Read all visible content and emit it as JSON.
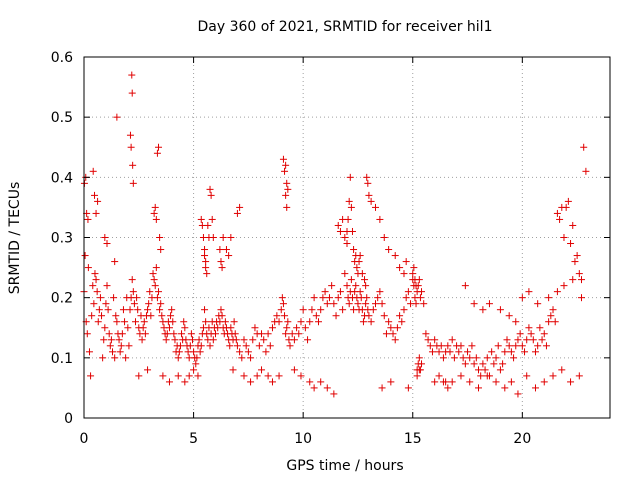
{
  "chart_data": {
    "type": "scatter",
    "title": "Day 360 of 2021, SRMTID for receiver hil1",
    "xlabel": "GPS time / hours",
    "ylabel": "SRMTID / TECUs",
    "xlim": [
      0,
      24
    ],
    "ylim": [
      0,
      0.6
    ],
    "xticks": [
      0,
      5,
      10,
      15,
      20
    ],
    "xtick_labels": [
      "0",
      "5",
      "10",
      "15",
      "20"
    ],
    "yticks": [
      0,
      0.1,
      0.2,
      0.3,
      0.4,
      0.5,
      0.6
    ],
    "ytick_labels": [
      "0",
      "0.1",
      "0.2",
      "0.3",
      "0.4",
      "0.5",
      "0.6"
    ],
    "grid": true,
    "marker": "+",
    "series": [
      {
        "name": "SRMTID",
        "color": "#e00000",
        "x": [
          0.0,
          0.05,
          0.1,
          0.15,
          0.2,
          0.25,
          0.3,
          0.35,
          0.4,
          0.45,
          0.5,
          0.55,
          0.6,
          0.65,
          0.7,
          0.75,
          0.8,
          0.85,
          0.9,
          0.95,
          1.0,
          1.05,
          1.1,
          1.15,
          1.2,
          1.25,
          1.3,
          1.35,
          1.4,
          1.45,
          1.5,
          1.55,
          1.6,
          1.65,
          1.7,
          1.75,
          1.8,
          1.85,
          1.9,
          1.95,
          2.0,
          2.05,
          2.1,
          2.15,
          2.2,
          2.25,
          2.3,
          2.35,
          2.4,
          2.45,
          2.5,
          2.55,
          2.6,
          2.65,
          2.7,
          2.75,
          2.8,
          2.85,
          2.9,
          2.95,
          3.0,
          3.05,
          3.1,
          3.15,
          3.2,
          3.25,
          3.3,
          3.35,
          3.4,
          3.45,
          3.5,
          3.55,
          3.6,
          3.65,
          3.7,
          3.75,
          3.8,
          3.85,
          3.9,
          3.95,
          4.0,
          4.05,
          4.1,
          4.15,
          4.2,
          4.25,
          4.3,
          4.35,
          4.4,
          4.45,
          4.5,
          4.55,
          4.6,
          4.65,
          4.7,
          4.75,
          4.8,
          4.85,
          4.9,
          4.95,
          5.0,
          5.05,
          5.1,
          5.15,
          5.2,
          5.25,
          5.3,
          5.35,
          5.4,
          5.45,
          5.5,
          5.55,
          5.6,
          5.65,
          5.7,
          5.75,
          5.8,
          5.85,
          5.9,
          5.95,
          6.0,
          6.05,
          6.1,
          6.15,
          6.2,
          6.25,
          6.3,
          6.35,
          6.4,
          6.45,
          6.5,
          6.55,
          6.6,
          6.65,
          6.7,
          6.75,
          6.8,
          6.85,
          6.9,
          6.95,
          7.0,
          7.1,
          7.2,
          7.3,
          7.4,
          7.5,
          7.6,
          7.7,
          7.8,
          7.9,
          8.0,
          8.1,
          8.2,
          8.3,
          8.4,
          8.5,
          8.6,
          8.7,
          8.8,
          8.9,
          9.0,
          9.05,
          9.1,
          9.15,
          9.2,
          9.25,
          9.3,
          9.35,
          9.4,
          9.5,
          9.6,
          9.7,
          9.8,
          9.9,
          10.0,
          10.1,
          10.2,
          10.3,
          10.4,
          10.5,
          10.6,
          10.7,
          10.8,
          10.9,
          11.0,
          11.1,
          11.2,
          11.3,
          11.4,
          11.5,
          11.6,
          11.7,
          11.8,
          11.9,
          12.0,
          12.05,
          12.1,
          12.15,
          12.2,
          12.25,
          12.3,
          12.35,
          12.4,
          12.45,
          12.5,
          12.55,
          12.6,
          12.65,
          12.7,
          12.75,
          12.8,
          12.85,
          12.9,
          12.95,
          13.0,
          13.1,
          13.2,
          13.3,
          13.4,
          13.5,
          13.6,
          13.7,
          13.8,
          13.9,
          14.0,
          14.1,
          14.2,
          14.3,
          14.4,
          14.5,
          14.6,
          14.7,
          14.8,
          14.9,
          15.0,
          15.05,
          15.1,
          15.15,
          15.2,
          15.25,
          15.3,
          15.35,
          15.4,
          15.5,
          15.6,
          15.7,
          15.8,
          15.9,
          16.0,
          16.1,
          16.2,
          16.3,
          16.4,
          16.5,
          16.6,
          16.7,
          16.8,
          16.9,
          17.0,
          17.1,
          17.2,
          17.3,
          17.4,
          17.5,
          17.6,
          17.7,
          17.8,
          17.9,
          18.0,
          18.1,
          18.2,
          18.3,
          18.4,
          18.5,
          18.6,
          18.7,
          18.8,
          18.9,
          19.0,
          19.1,
          19.2,
          19.3,
          19.4,
          19.5,
          19.6,
          19.7,
          19.8,
          19.9,
          20.0,
          20.1,
          20.2,
          20.3,
          20.4,
          20.5,
          20.6,
          20.7,
          20.8,
          20.9,
          21.0,
          21.1,
          21.2,
          21.3,
          21.4,
          21.5,
          21.6,
          21.7,
          21.8,
          21.9,
          22.0,
          22.1,
          22.2,
          22.3,
          22.4,
          22.5,
          22.6,
          22.7,
          22.8,
          22.9,
          0.02,
          0.08,
          0.12,
          0.18,
          0.42,
          0.48,
          0.55,
          0.62,
          0.95,
          1.05,
          1.4,
          1.5,
          2.12,
          2.15,
          2.18,
          2.2,
          2.22,
          2.25,
          3.2,
          3.25,
          3.3,
          3.35,
          3.4,
          3.45,
          3.5,
          5.35,
          5.4,
          5.45,
          5.5,
          5.5,
          5.55,
          5.55,
          5.6,
          5.65,
          5.7,
          5.75,
          5.8,
          5.85,
          5.9,
          6.2,
          6.25,
          6.3,
          6.35,
          6.5,
          6.6,
          6.7,
          7.0,
          7.1,
          9.1,
          9.15,
          9.2,
          9.25,
          9.3,
          9.2,
          9.25,
          11.6,
          11.7,
          11.8,
          11.9,
          12.0,
          12.0,
          12.05,
          12.1,
          12.15,
          12.2,
          12.25,
          12.3,
          12.35,
          12.4,
          12.45,
          12.5,
          12.55,
          12.6,
          12.7,
          12.8,
          12.85,
          12.9,
          12.95,
          13.0,
          13.1,
          13.3,
          13.5,
          13.7,
          13.9,
          14.2,
          14.4,
          14.6,
          14.7,
          15.0,
          15.05,
          15.1,
          15.15,
          15.2,
          15.25,
          15.3,
          15.35,
          15.4,
          15.3,
          15.2,
          16.0,
          16.2,
          16.4,
          16.5,
          16.6,
          2.5,
          2.9,
          3.6,
          3.9,
          4.3,
          4.6,
          4.8,
          5.0,
          5.2,
          6.8,
          7.3,
          7.6,
          7.9,
          8.1,
          8.4,
          8.6,
          8.9,
          9.6,
          9.9,
          10.3,
          10.5,
          10.8,
          11.1,
          11.4,
          13.6,
          14.0,
          14.8,
          16.8,
          17.2,
          17.6,
          18.0,
          18.4,
          18.8,
          19.2,
          19.5,
          19.8,
          20.2,
          20.6,
          21.0,
          21.4,
          21.8,
          22.2,
          22.6,
          18.5,
          19.0,
          19.4,
          19.7,
          20.0,
          20.3,
          20.7,
          21.2,
          21.6,
          21.9,
          22.3,
          22.7,
          17.4,
          17.8,
          18.2
        ],
        "y": [
          0.21,
          0.27,
          0.16,
          0.14,
          0.25,
          0.11,
          0.07,
          0.17,
          0.22,
          0.19,
          0.24,
          0.23,
          0.21,
          0.16,
          0.18,
          0.2,
          0.17,
          0.1,
          0.13,
          0.15,
          0.19,
          0.22,
          0.18,
          0.14,
          0.12,
          0.13,
          0.11,
          0.2,
          0.1,
          0.17,
          0.16,
          0.14,
          0.13,
          0.11,
          0.12,
          0.14,
          0.18,
          0.16,
          0.1,
          0.2,
          0.15,
          0.12,
          0.18,
          0.2,
          0.23,
          0.21,
          0.19,
          0.16,
          0.2,
          0.18,
          0.15,
          0.14,
          0.17,
          0.13,
          0.15,
          0.16,
          0.14,
          0.17,
          0.18,
          0.19,
          0.21,
          0.17,
          0.2,
          0.24,
          0.23,
          0.22,
          0.25,
          0.2,
          0.21,
          0.18,
          0.19,
          0.17,
          0.16,
          0.15,
          0.14,
          0.13,
          0.14,
          0.16,
          0.15,
          0.17,
          0.18,
          0.16,
          0.14,
          0.13,
          0.11,
          0.12,
          0.1,
          0.11,
          0.12,
          0.14,
          0.13,
          0.16,
          0.15,
          0.13,
          0.12,
          0.11,
          0.1,
          0.12,
          0.14,
          0.13,
          0.11,
          0.1,
          0.09,
          0.1,
          0.12,
          0.13,
          0.11,
          0.12,
          0.14,
          0.15,
          0.18,
          0.16,
          0.14,
          0.13,
          0.15,
          0.12,
          0.14,
          0.16,
          0.13,
          0.15,
          0.14,
          0.16,
          0.15,
          0.17,
          0.16,
          0.18,
          0.17,
          0.15,
          0.14,
          0.16,
          0.15,
          0.14,
          0.13,
          0.12,
          0.15,
          0.14,
          0.13,
          0.16,
          0.14,
          0.13,
          0.12,
          0.11,
          0.1,
          0.13,
          0.12,
          0.11,
          0.1,
          0.13,
          0.15,
          0.14,
          0.12,
          0.14,
          0.13,
          0.11,
          0.14,
          0.12,
          0.15,
          0.16,
          0.17,
          0.16,
          0.18,
          0.2,
          0.19,
          0.17,
          0.14,
          0.15,
          0.16,
          0.13,
          0.12,
          0.14,
          0.13,
          0.15,
          0.14,
          0.16,
          0.18,
          0.15,
          0.13,
          0.16,
          0.18,
          0.2,
          0.17,
          0.16,
          0.18,
          0.2,
          0.21,
          0.19,
          0.2,
          0.22,
          0.19,
          0.17,
          0.2,
          0.21,
          0.18,
          0.24,
          0.22,
          0.2,
          0.19,
          0.21,
          0.23,
          0.2,
          0.18,
          0.21,
          0.22,
          0.2,
          0.19,
          0.18,
          0.21,
          0.2,
          0.18,
          0.16,
          0.17,
          0.19,
          0.2,
          0.18,
          0.17,
          0.16,
          0.18,
          0.19,
          0.2,
          0.21,
          0.19,
          0.17,
          0.14,
          0.16,
          0.15,
          0.14,
          0.13,
          0.15,
          0.17,
          0.16,
          0.18,
          0.2,
          0.21,
          0.19,
          0.23,
          0.22,
          0.2,
          0.19,
          0.21,
          0.22,
          0.23,
          0.2,
          0.21,
          0.19,
          0.14,
          0.13,
          0.12,
          0.11,
          0.13,
          0.12,
          0.11,
          0.12,
          0.1,
          0.11,
          0.12,
          0.11,
          0.13,
          0.1,
          0.12,
          0.11,
          0.12,
          0.1,
          0.09,
          0.11,
          0.1,
          0.12,
          0.09,
          0.1,
          0.08,
          0.07,
          0.09,
          0.08,
          0.1,
          0.07,
          0.11,
          0.09,
          0.1,
          0.12,
          0.08,
          0.09,
          0.11,
          0.13,
          0.12,
          0.11,
          0.1,
          0.12,
          0.13,
          0.14,
          0.12,
          0.11,
          0.13,
          0.15,
          0.14,
          0.13,
          0.11,
          0.12,
          0.15,
          0.13,
          0.14,
          0.12,
          0.16,
          0.17,
          0.18,
          0.16,
          0.34,
          0.33,
          0.35,
          0.3,
          0.35,
          0.36,
          0.29,
          0.32,
          0.26,
          0.27,
          0.24,
          0.23,
          0.45,
          0.41,
          0.39,
          0.4,
          0.34,
          0.33,
          0.41,
          0.37,
          0.34,
          0.36,
          0.3,
          0.29,
          0.26,
          0.5,
          0.47,
          0.45,
          0.57,
          0.54,
          0.42,
          0.39,
          0.34,
          0.35,
          0.33,
          0.44,
          0.45,
          0.3,
          0.28,
          0.33,
          0.32,
          0.3,
          0.28,
          0.27,
          0.26,
          0.25,
          0.24,
          0.32,
          0.3,
          0.38,
          0.37,
          0.33,
          0.3,
          0.28,
          0.26,
          0.25,
          0.3,
          0.28,
          0.27,
          0.3,
          0.34,
          0.35,
          0.43,
          0.41,
          0.42,
          0.39,
          0.38,
          0.37,
          0.35,
          0.32,
          0.31,
          0.33,
          0.3,
          0.29,
          0.31,
          0.33,
          0.36,
          0.4,
          0.35,
          0.31,
          0.28,
          0.26,
          0.27,
          0.25,
          0.24,
          0.26,
          0.27,
          0.24,
          0.23,
          0.22,
          0.4,
          0.39,
          0.37,
          0.36,
          0.35,
          0.33,
          0.3,
          0.28,
          0.27,
          0.25,
          0.24,
          0.26,
          0.24,
          0.25,
          0.23,
          0.22,
          0.08,
          0.09,
          0.1,
          0.08,
          0.09,
          0.08,
          0.07,
          0.06,
          0.07,
          0.06,
          0.06,
          0.05,
          0.07,
          0.08,
          0.07,
          0.06,
          0.07,
          0.06,
          0.07,
          0.08,
          0.07,
          0.08,
          0.07,
          0.06,
          0.07,
          0.08,
          0.07,
          0.06,
          0.07,
          0.08,
          0.07,
          0.06,
          0.05,
          0.06,
          0.05,
          0.04,
          0.05,
          0.06,
          0.05,
          0.06,
          0.07,
          0.06,
          0.05,
          0.07,
          0.06,
          0.05,
          0.06,
          0.04,
          0.07,
          0.05,
          0.06,
          0.07,
          0.08,
          0.06,
          0.07,
          0.19,
          0.18,
          0.17,
          0.16,
          0.2,
          0.21,
          0.19,
          0.2,
          0.21,
          0.22,
          0.23,
          0.2,
          0.22,
          0.19,
          0.18
        ]
      }
    ]
  }
}
